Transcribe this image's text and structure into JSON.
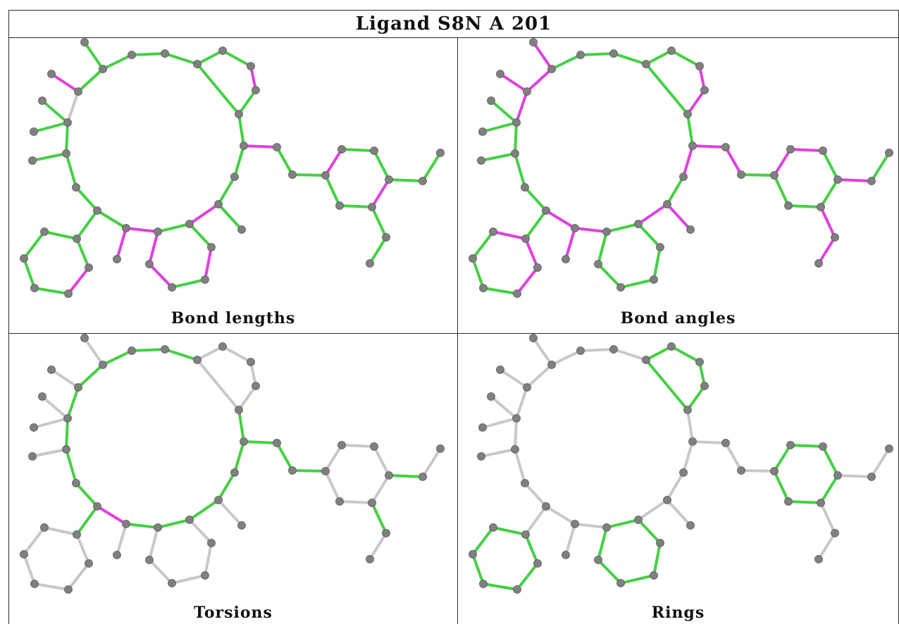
{
  "title": "Ligand S8N A 201",
  "panels": [
    {
      "id": "bond-lengths",
      "caption": "Bond lengths"
    },
    {
      "id": "bond-angles",
      "caption": "Bond angles"
    },
    {
      "id": "torsions",
      "caption": "Torsions"
    },
    {
      "id": "rings",
      "caption": "Rings"
    }
  ],
  "colors": {
    "outlier": "#e040e0",
    "normal": "#44d044",
    "not_assessed": "#c8c8c8",
    "atom": "#808080"
  }
}
